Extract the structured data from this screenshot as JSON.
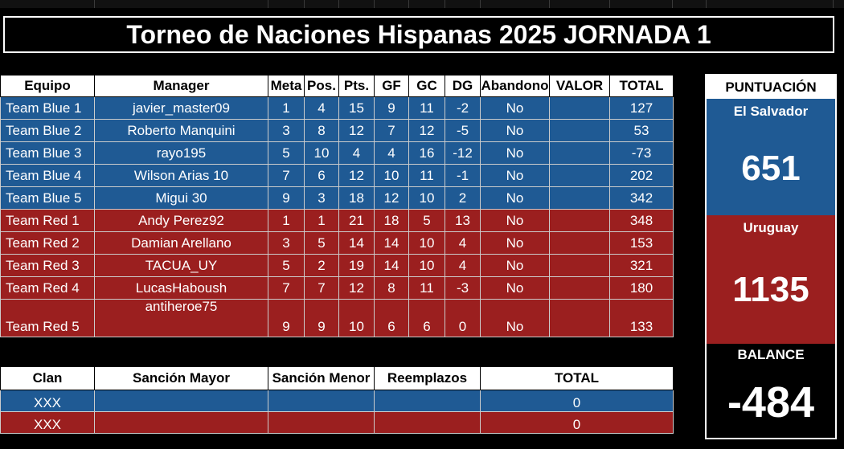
{
  "title": "Torneo de Naciones Hispanas 2025 JORNADA 1",
  "main_table": {
    "headers": [
      "Equipo",
      "Manager",
      "Meta",
      "Pos.",
      "Pts.",
      "GF",
      "GC",
      "DG",
      "Abandono",
      "VALOR",
      "TOTAL"
    ],
    "rows": [
      {
        "team": "Team Blue 1",
        "manager": "javier_master09",
        "meta": "1",
        "pos": "4",
        "pts": "15",
        "gf": "9",
        "gc": "11",
        "dg": "-2",
        "abandono": "No",
        "valor": "",
        "total": "127"
      },
      {
        "team": "Team Blue 2",
        "manager": "Roberto Manquini",
        "meta": "3",
        "pos": "8",
        "pts": "12",
        "gf": "7",
        "gc": "12",
        "dg": "-5",
        "abandono": "No",
        "valor": "",
        "total": "53"
      },
      {
        "team": "Team Blue 3",
        "manager": "rayo195",
        "meta": "5",
        "pos": "10",
        "pts": "4",
        "gf": "4",
        "gc": "16",
        "dg": "-12",
        "abandono": "No",
        "valor": "",
        "total": "-73"
      },
      {
        "team": "Team Blue 4",
        "manager": "Wilson Arias 10",
        "meta": "7",
        "pos": "6",
        "pts": "12",
        "gf": "10",
        "gc": "11",
        "dg": "-1",
        "abandono": "No",
        "valor": "",
        "total": "202"
      },
      {
        "team": "Team Blue 5",
        "manager": "Migui 30",
        "meta": "9",
        "pos": "3",
        "pts": "18",
        "gf": "12",
        "gc": "10",
        "dg": "2",
        "abandono": "No",
        "valor": "",
        "total": "342"
      },
      {
        "team": "Team Red 1",
        "manager": "Andy Perez92",
        "meta": "1",
        "pos": "1",
        "pts": "21",
        "gf": "18",
        "gc": "5",
        "dg": "13",
        "abandono": "No",
        "valor": "",
        "total": "348"
      },
      {
        "team": "Team Red 2",
        "manager": "Damian Arellano",
        "meta": "3",
        "pos": "5",
        "pts": "14",
        "gf": "14",
        "gc": "10",
        "dg": "4",
        "abandono": "No",
        "valor": "",
        "total": "153"
      },
      {
        "team": "Team Red 3",
        "manager": "TACUA_UY",
        "meta": "5",
        "pos": "2",
        "pts": "19",
        "gf": "14",
        "gc": "10",
        "dg": "4",
        "abandono": "No",
        "valor": "",
        "total": "321"
      },
      {
        "team": "Team Red 4",
        "manager": "LucasHaboush",
        "meta": "7",
        "pos": "7",
        "pts": "12",
        "gf": "8",
        "gc": "11",
        "dg": "-3",
        "abandono": "No",
        "valor": "",
        "total": "180"
      },
      {
        "team": "Team Red 5",
        "manager": "antiheroe75",
        "meta": "9",
        "pos": "9",
        "pts": "10",
        "gf": "6",
        "gc": "6",
        "dg": "0",
        "abandono": "No",
        "valor": "",
        "total": "133"
      }
    ]
  },
  "penalty_table": {
    "headers": [
      "Clan",
      "Sanción Mayor",
      "Sanción Menor",
      "Reemplazos",
      "TOTAL"
    ],
    "rows": [
      {
        "clan": "XXX",
        "mayor": "",
        "menor": "",
        "reemplazos": "",
        "total": "0"
      },
      {
        "clan": "XXX",
        "mayor": "",
        "menor": "",
        "reemplazos": "",
        "total": "0"
      }
    ]
  },
  "scoreboard": {
    "header": "PUNTUACIÓN",
    "team1_name": "El Salvador",
    "team1_score": "651",
    "team2_name": "Uruguay",
    "team2_score": "1135",
    "balance_label": "BALANCE",
    "balance_value": "-484"
  },
  "colors": {
    "blue": "#1f5a94",
    "red": "#9b1f1f",
    "background": "#000000",
    "header": "#ffffff"
  }
}
